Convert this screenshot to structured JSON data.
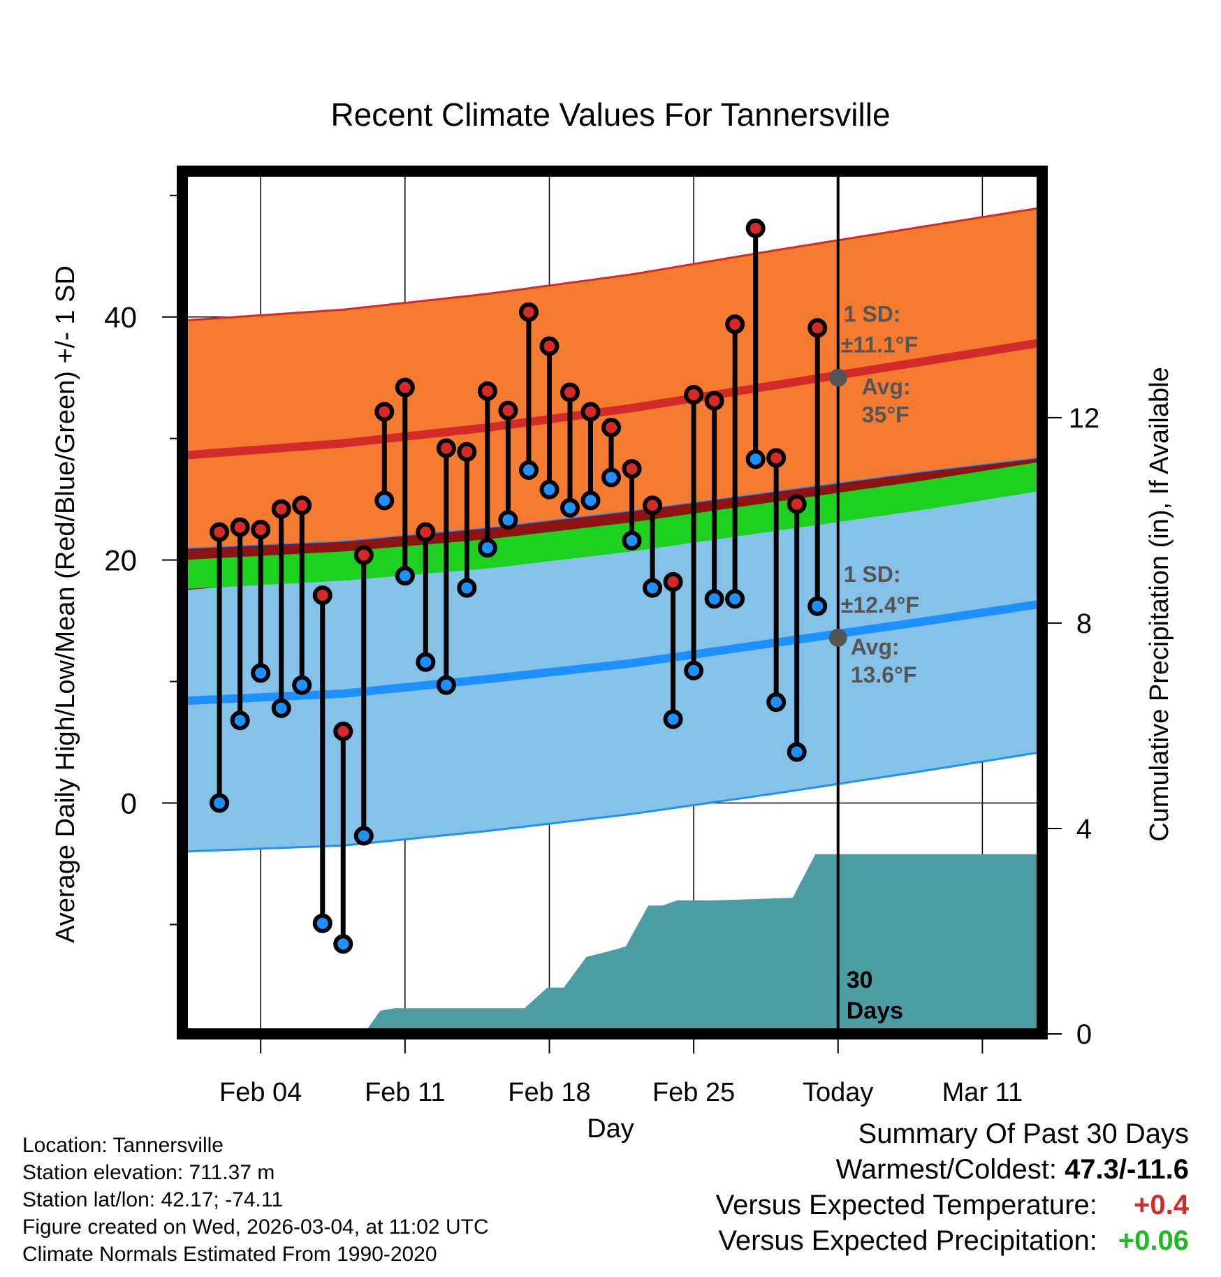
{
  "chart_data": {
    "type": "line",
    "title": "Recent Climate Values For Tannersville",
    "xlabel": "Day",
    "ylabel": "Average Daily High/Low/Mean (Red/Blue/Green) +/- 1 SD",
    "y2label": "Cumulative Precipitation (in), If Available",
    "x_tick_labels": [
      "Feb 04",
      "Feb 11",
      "Feb 18",
      "Feb 25",
      "Today",
      "Mar 11"
    ],
    "x_tick_days": [
      4,
      11,
      18,
      25,
      32,
      39
    ],
    "xlim": [
      0.2,
      41.9
    ],
    "ylim": [
      -19,
      52
    ],
    "y_ticks": [
      0,
      20,
      40
    ],
    "y_minor_ticks": [
      -10,
      10,
      30,
      50
    ],
    "y2lim": [
      0,
      16.8
    ],
    "y2_ticks": [
      0,
      4,
      8,
      12
    ],
    "today_day": 32,
    "today_label": "30 Days",
    "normals": {
      "days": [
        0.2,
        8,
        15,
        22,
        29,
        36,
        41.9
      ],
      "high_avg": [
        28.6,
        29.6,
        30.9,
        32.5,
        34.4,
        36.3,
        37.9
      ],
      "high_upper": [
        39.7,
        40.6,
        41.9,
        43.5,
        45.5,
        47.4,
        49.0
      ],
      "high_lower": [
        17.5,
        18.6,
        20.0,
        21.6,
        23.5,
        25.3,
        26.9
      ],
      "low_avg": [
        8.4,
        9.0,
        10.2,
        11.5,
        13.2,
        14.9,
        16.4
      ],
      "low_upper": [
        20.9,
        21.5,
        22.6,
        24.0,
        25.6,
        27.2,
        28.4
      ],
      "low_lower": [
        -4.0,
        -3.5,
        -2.3,
        -0.9,
        0.8,
        2.6,
        4.2
      ],
      "mean_avg": [
        18.8,
        19.5,
        20.5,
        21.9,
        23.6,
        25.3,
        26.9
      ],
      "mean_width": 1.2
    },
    "series": [
      {
        "name": "High",
        "color": "#d42a2a",
        "days": [
          2,
          3,
          4,
          5,
          6,
          7,
          8,
          9,
          10,
          11,
          12,
          13,
          14,
          15,
          16,
          17,
          18,
          19,
          20,
          21,
          22,
          23,
          24,
          25,
          26,
          27,
          28,
          29,
          30,
          31
        ],
        "values": [
          22.3,
          22.7,
          22.5,
          24.2,
          24.5,
          17.1,
          5.9,
          20.4,
          32.2,
          34.2,
          22.3,
          29.2,
          28.9,
          33.9,
          32.3,
          40.4,
          37.6,
          33.8,
          32.2,
          30.9,
          27.5,
          24.5,
          18.2,
          33.6,
          33.1,
          39.4,
          47.3,
          28.4,
          24.6,
          39.1
        ]
      },
      {
        "name": "Low",
        "color": "#1e90ff",
        "days": [
          2,
          3,
          4,
          5,
          6,
          7,
          8,
          9,
          10,
          11,
          12,
          13,
          14,
          15,
          16,
          17,
          18,
          19,
          20,
          21,
          22,
          23,
          24,
          25,
          26,
          27,
          28,
          29,
          30,
          31
        ],
        "values": [
          0.0,
          6.8,
          10.7,
          7.8,
          9.7,
          -9.9,
          -11.6,
          -2.7,
          24.9,
          18.7,
          11.6,
          9.7,
          17.7,
          21.0,
          23.3,
          27.4,
          25.8,
          24.3,
          24.9,
          26.8,
          21.6,
          17.7,
          6.9,
          10.9,
          16.8,
          16.8,
          28.3,
          8.3,
          4.2,
          16.2
        ]
      },
      {
        "name": "Cumulative Precipitation",
        "color": "#4b9ca3",
        "days": [
          0.2,
          9,
          9.8,
          10.5,
          16.8,
          17.9,
          18.7,
          19.8,
          20.8,
          21.7,
          22.8,
          23.5,
          24.2,
          25,
          26,
          29.8,
          30.9,
          31.2,
          31.4,
          41.9
        ],
        "values": [
          0,
          0,
          0.45,
          0.5,
          0.5,
          0.9,
          0.9,
          1.5,
          1.6,
          1.7,
          2.5,
          2.5,
          2.6,
          2.6,
          2.6,
          2.65,
          3.5,
          3.5,
          3.5,
          3.5
        ]
      }
    ],
    "annotations": {
      "high_sd_label": "1 SD:",
      "high_sd_value": "±11.1°F",
      "high_avg_label": "Avg:",
      "high_avg_value": "35°F",
      "high_avg_point": 35,
      "low_sd_label": "1 SD:",
      "low_sd_value": "±12.4°F",
      "low_avg_label": "Avg:",
      "low_avg_value": "13.6°F",
      "low_avg_point": 13.6
    },
    "colors": {
      "high_band": "#f47b30",
      "high_line": "#d42a2a",
      "low_band": "#85c2e8",
      "low_line": "#1e90ff",
      "mean_band": "#1fd11f",
      "overlap": "#8e1414",
      "precip": "#4b9ca3",
      "annotation": "#555555"
    }
  },
  "footer": {
    "location": "Location: Tannersville",
    "elevation": "Station elevation: 711.37 m",
    "latlon": "Station lat/lon: 42.17; -74.11",
    "created": "Figure created on Wed, 2026-03-04, at 11:02 UTC",
    "normals": "Climate Normals Estimated From 1990-2020"
  },
  "summary": {
    "title": "Summary Of Past 30 Days",
    "warm_cold_label": "Warmest/Coldest:",
    "warm_cold_value": "47.3/-11.6",
    "temp_label": "Versus Expected Temperature:",
    "temp_value": "+0.4",
    "precip_label": "Versus Expected Precipitation:",
    "precip_value": "+0.06"
  }
}
